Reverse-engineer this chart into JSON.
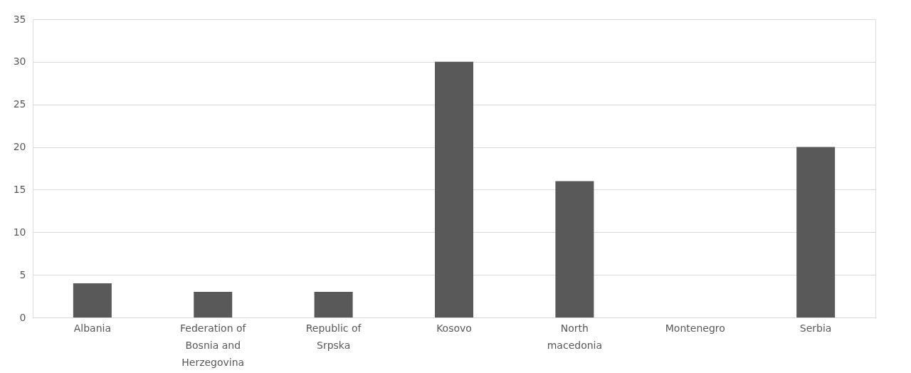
{
  "chart_data": {
    "type": "bar",
    "categories": [
      "Albania",
      "Federation of Bosnia and Herzegovina",
      "Republic of Srpska",
      "Kosovo",
      "North macedonia",
      "Montenegro",
      "Serbia"
    ],
    "values": [
      4,
      3,
      3,
      30,
      16,
      0,
      20
    ],
    "color": "#595959",
    "ylim": [
      0,
      35
    ],
    "yticks": [
      0,
      5,
      10,
      15,
      20,
      25,
      30,
      35
    ],
    "grid": "y"
  }
}
